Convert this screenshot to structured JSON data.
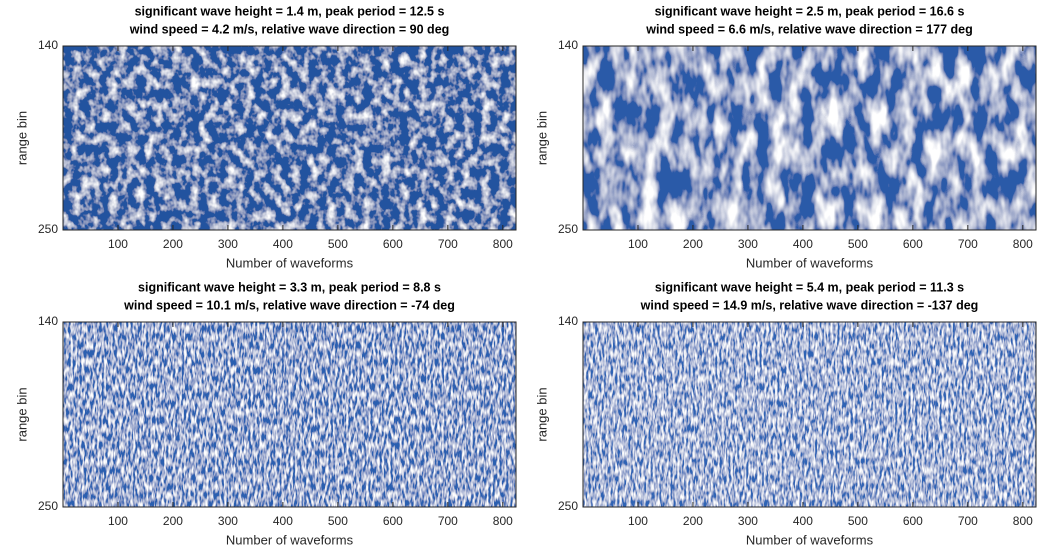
{
  "chart_data": [
    {
      "type": "heatmap",
      "title": [
        "significant wave height = 1.4 m, peak period = 12.5 s",
        "wind speed = 4.2 m/s, relative wave direction = 90 deg"
      ],
      "xlabel": "Number of waveforms",
      "ylabel": "range bin",
      "xlim": [
        0,
        824
      ],
      "xticks": [
        100,
        200,
        300,
        400,
        500,
        600,
        700,
        800
      ],
      "ylim": [
        140,
        250
      ],
      "yticks": [
        140,
        250
      ]
    },
    {
      "type": "heatmap",
      "title": [
        "significant wave height = 2.5 m, peak period = 16.6 s",
        "wind speed = 6.6 m/s, relative wave direction = 177 deg"
      ],
      "xlabel": "Number of waveforms",
      "ylabel": "range bin",
      "xlim": [
        0,
        824
      ],
      "xticks": [
        100,
        200,
        300,
        400,
        500,
        600,
        700,
        800
      ],
      "ylim": [
        140,
        250
      ],
      "yticks": [
        140,
        250
      ]
    },
    {
      "type": "heatmap",
      "title": [
        "significant wave height = 3.3 m, peak period = 8.8 s",
        "wind speed = 10.1 m/s, relative wave direction = -74 deg"
      ],
      "xlabel": "Number of waveforms",
      "ylabel": "range bin",
      "xlim": [
        0,
        824
      ],
      "xticks": [
        100,
        200,
        300,
        400,
        500,
        600,
        700,
        800
      ],
      "ylim": [
        140,
        250
      ],
      "yticks": [
        140,
        250
      ]
    },
    {
      "type": "heatmap",
      "title": [
        "significant wave height = 5.4 m, peak period = 11.3 s",
        "wind speed = 14.9 m/s, relative wave direction = -137 deg"
      ],
      "xlabel": "Number of waveforms",
      "ylabel": "range bin",
      "xlim": [
        0,
        824
      ],
      "xticks": [
        100,
        200,
        300,
        400,
        500,
        600,
        700,
        800
      ],
      "ylim": [
        140,
        250
      ],
      "yticks": [
        140,
        250
      ]
    }
  ]
}
